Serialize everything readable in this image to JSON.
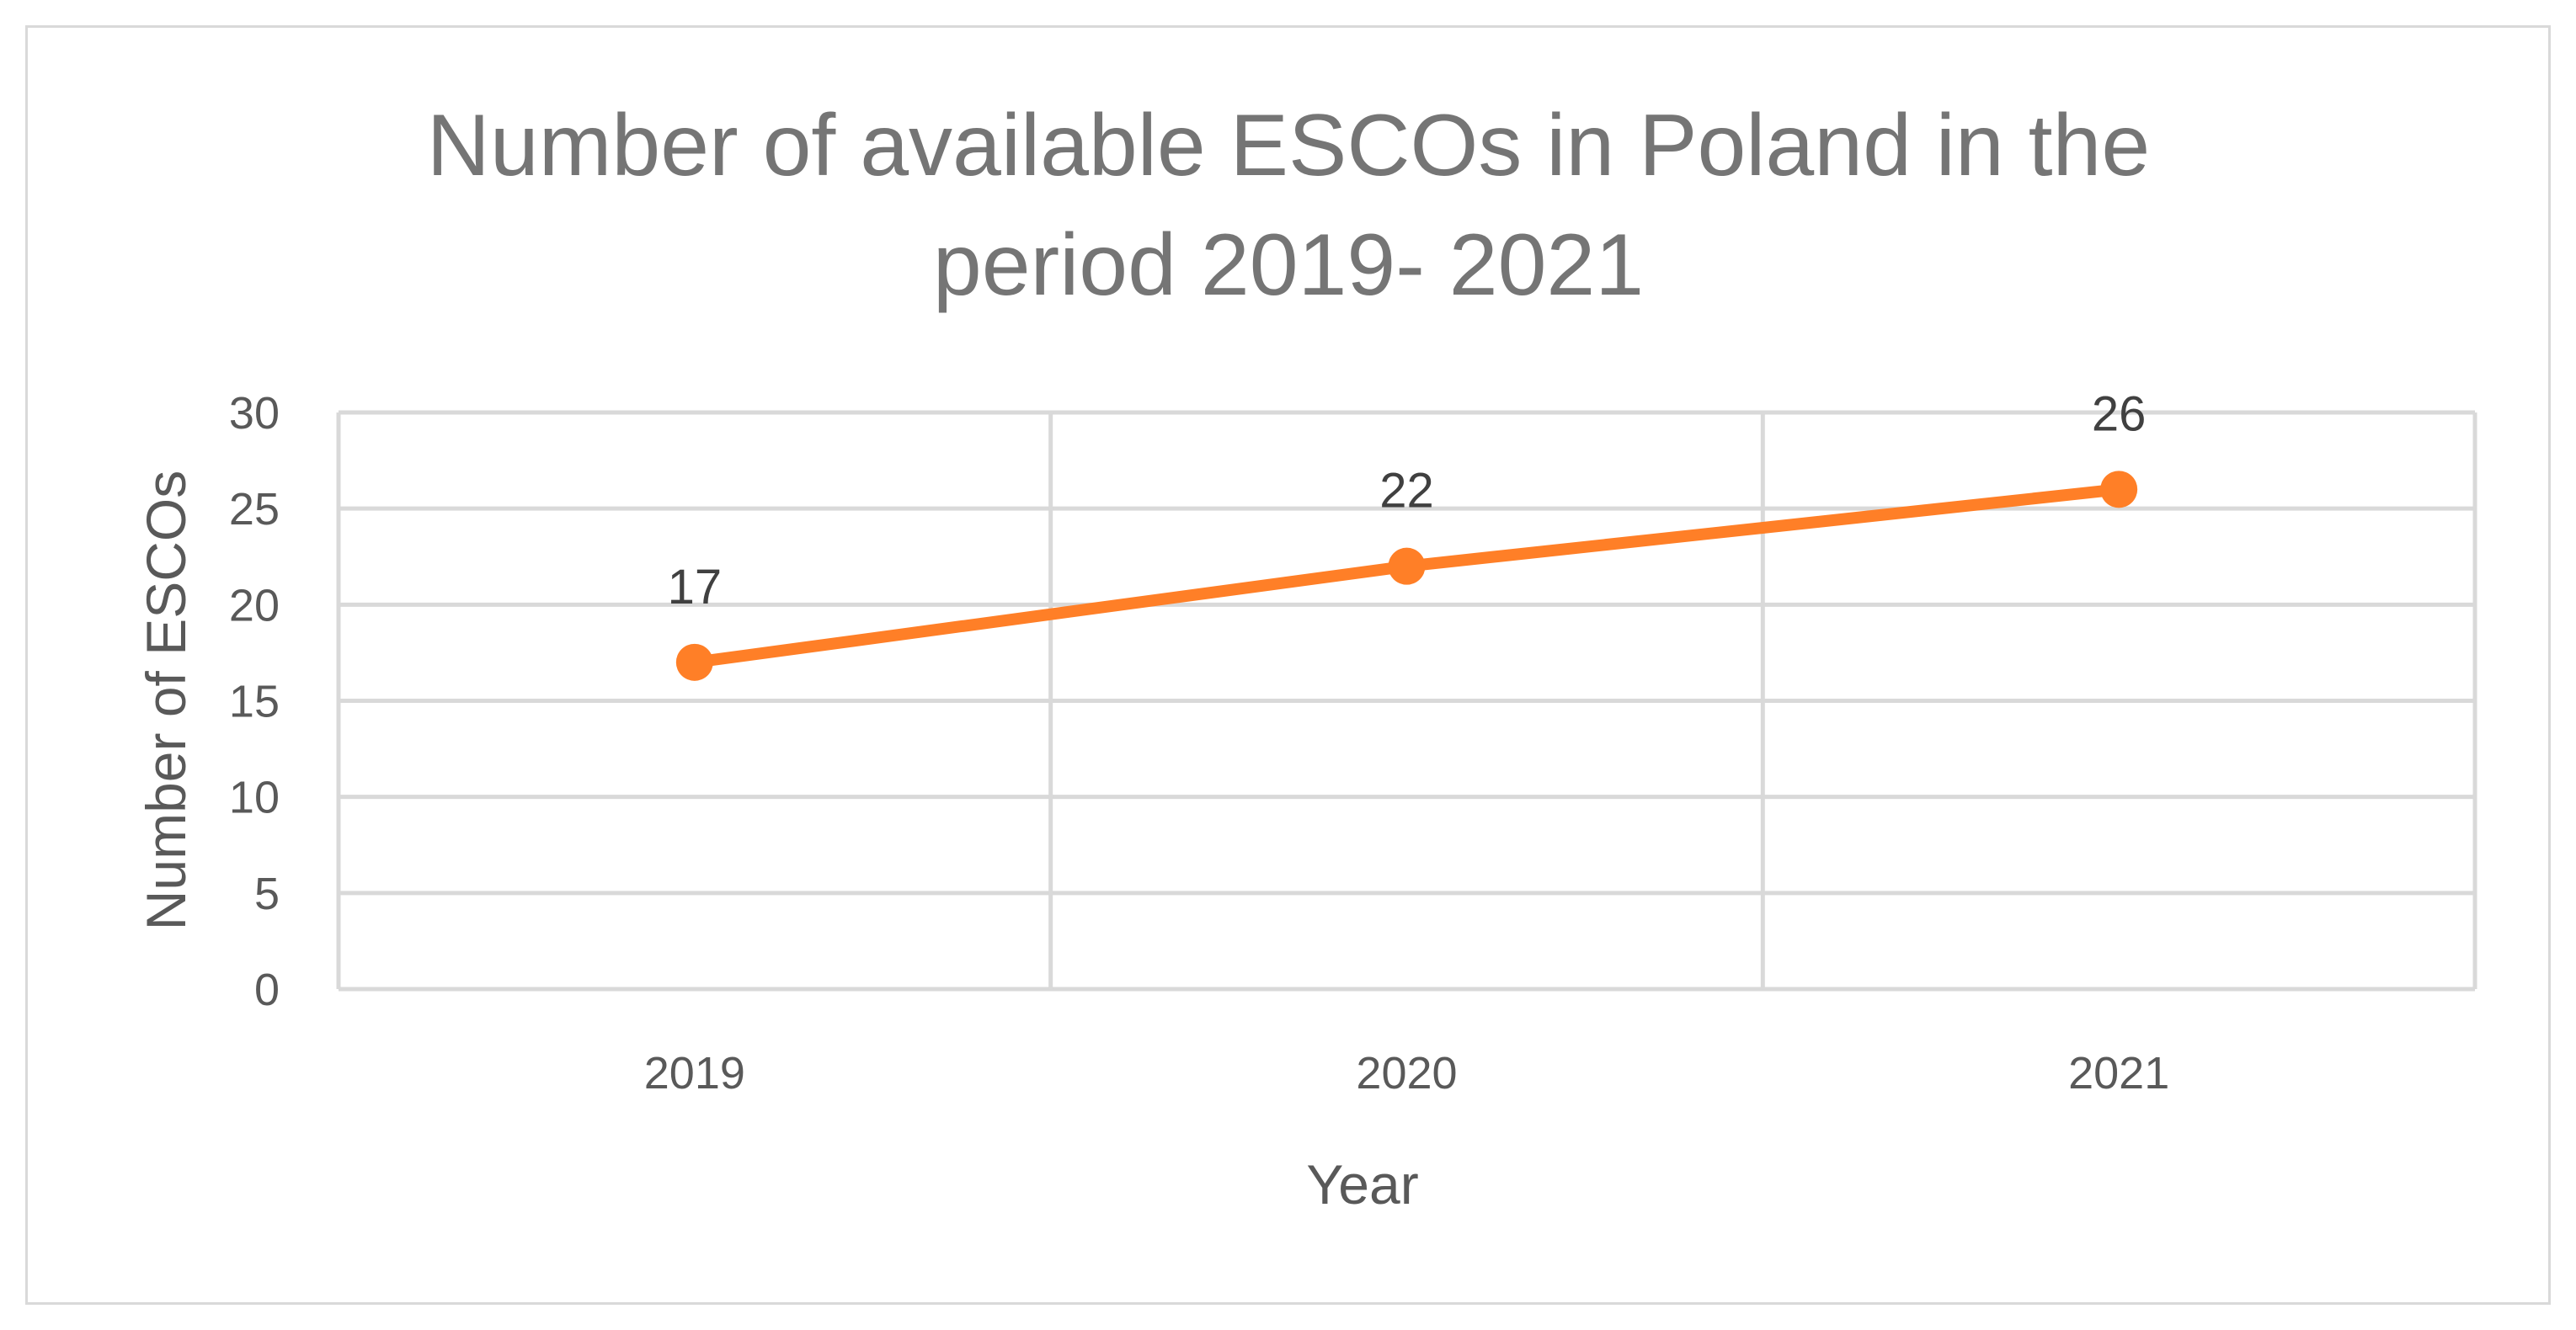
{
  "chart_data": {
    "type": "line",
    "title_lines": [
      "Number of available ESCOs in Poland in the",
      "period 2019- 2021"
    ],
    "xlabel": "Year",
    "ylabel": "Number of ESCOs",
    "categories": [
      "2019",
      "2020",
      "2021"
    ],
    "series": [
      {
        "name": "Number of ESCOs",
        "values": [
          17,
          22,
          26
        ],
        "color": "#ff7f27"
      }
    ],
    "ylim": [
      0,
      30
    ],
    "yticks": [
      0,
      5,
      10,
      15,
      20,
      25,
      30
    ],
    "grid": true,
    "data_labels": true,
    "colors": {
      "grid": "#d9d9d9",
      "text": "#595959",
      "title": "#757575",
      "frame": "#d9d9d9"
    }
  }
}
